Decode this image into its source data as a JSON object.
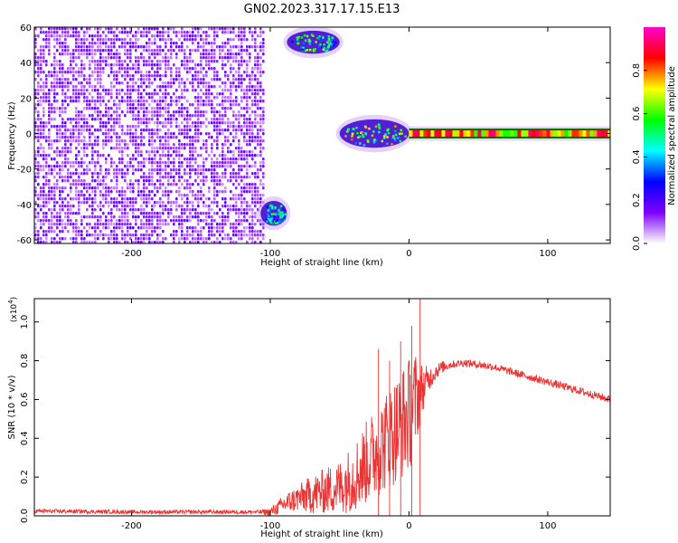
{
  "title": "GN02.2023.317.17.15.E13",
  "chart_data": [
    {
      "type": "heatmap",
      "xlabel": "Height of straight line (km)",
      "ylabel": "Frequency (Hz)",
      "xlim": [
        -270,
        145
      ],
      "ylim": [
        -62,
        60
      ],
      "x_ticks": [
        -200,
        -100,
        0,
        100
      ],
      "x_tick_labels": [
        "-200",
        "-100",
        "0",
        "100"
      ],
      "y_ticks": [
        60,
        40,
        20,
        0,
        -20,
        -40,
        -60
      ],
      "y_tick_labels": [
        "60",
        "40",
        "20",
        "0",
        "-20",
        "-40",
        "-60"
      ],
      "colorbar": {
        "label": "Normalized spectral amplitude",
        "range": [
          0,
          1
        ],
        "ticks": [
          0.0,
          0.2,
          0.4,
          0.6,
          0.8
        ],
        "tick_labels": [
          "0.0",
          "0.2",
          "0.4",
          "0.6",
          "0.8"
        ],
        "colormap": [
          "#ffffff",
          "#7f00ff",
          "#0000ff",
          "#00ffff",
          "#00ff00",
          "#ffff00",
          "#ff0000",
          "#ff00cc"
        ]
      },
      "regions": [
        {
          "name": "broadband-noise",
          "x": [
            -270,
            -105
          ],
          "freq": [
            -62,
            60
          ],
          "amplitude": 0.15
        },
        {
          "name": "burst-high",
          "x": [
            -88,
            -50
          ],
          "freq": [
            45,
            58
          ],
          "amplitude": 0.45
        },
        {
          "name": "burst-low",
          "x": [
            -107,
            -88
          ],
          "freq": [
            -52,
            -38
          ],
          "amplitude": 0.4
        },
        {
          "name": "tone-onset",
          "x": [
            -50,
            0
          ],
          "freq": [
            -8,
            8
          ],
          "amplitude": 0.55
        },
        {
          "name": "tone-steady",
          "x": [
            0,
            145
          ],
          "freq": [
            -2,
            2
          ],
          "amplitude": 0.9
        }
      ]
    },
    {
      "type": "line",
      "xlabel": "Height of straight line (km)",
      "ylabel": "SNR (10 * v/v)",
      "y_multiplier_label": "(x10",
      "y_multiplier_exp": "4",
      "y_multiplier_close": ")",
      "xlim": [
        -270,
        145
      ],
      "ylim": [
        0,
        1.12
      ],
      "x_ticks": [
        -200,
        -100,
        0,
        100
      ],
      "x_tick_labels": [
        "-200",
        "-100",
        "0",
        "100"
      ],
      "y_ticks": [
        0.0,
        0.2,
        0.4,
        0.6,
        0.8,
        1.0
      ],
      "y_tick_labels": [
        "0.0",
        "0.2",
        "0.4",
        "0.6",
        "0.8",
        "1.0"
      ],
      "color": "#ee3333",
      "series": [
        {
          "x": [
            -270,
            -200,
            -150,
            -110,
            -100,
            -90,
            -80,
            -70,
            -60,
            -50,
            -40,
            -30,
            -20,
            -10,
            0,
            5,
            10,
            15,
            20,
            25,
            30,
            40,
            50,
            60,
            70,
            80,
            90,
            100,
            110,
            120,
            130,
            145
          ],
          "values": [
            0.025,
            0.02,
            0.02,
            0.02,
            0.02,
            0.06,
            0.09,
            0.11,
            0.13,
            0.15,
            0.2,
            0.28,
            0.36,
            0.44,
            0.52,
            0.6,
            0.66,
            0.71,
            0.75,
            0.77,
            0.78,
            0.79,
            0.78,
            0.77,
            0.75,
            0.73,
            0.71,
            0.69,
            0.67,
            0.65,
            0.63,
            0.6
          ],
          "spread": [
            0.01,
            0.01,
            0.01,
            0.01,
            0.02,
            0.05,
            0.07,
            0.1,
            0.12,
            0.14,
            0.18,
            0.22,
            0.25,
            0.28,
            0.3,
            0.25,
            0.12,
            0.06,
            0.04,
            0.03,
            0.02,
            0.02,
            0.02,
            0.02,
            0.02,
            0.02,
            0.02,
            0.02,
            0.02,
            0.02,
            0.02,
            0.02
          ]
        }
      ],
      "spikes": [
        {
          "x": 8,
          "y": 1.12
        },
        {
          "x": -22,
          "y": 0.86
        },
        {
          "x": -14,
          "y": 0.8
        },
        {
          "x": 2,
          "y": 0.98
        },
        {
          "x": -6,
          "y": 0.9
        }
      ]
    }
  ]
}
